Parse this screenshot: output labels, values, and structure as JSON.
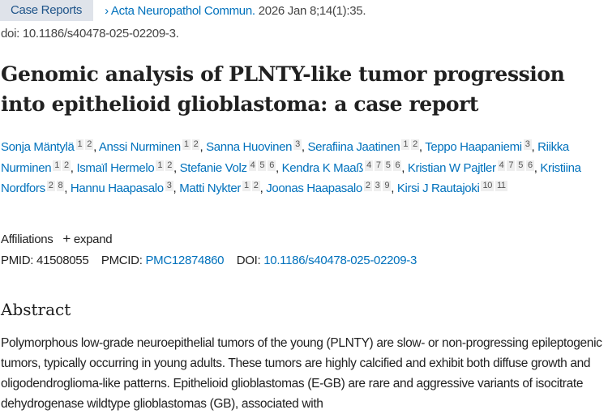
{
  "header": {
    "article_type": "Case Reports",
    "journal": "Acta Neuropathol Commun.",
    "citation": "2026 Jan 8;14(1):35.",
    "doi": "doi: 10.1186/s40478-025-02209-3."
  },
  "title": "Genomic analysis of PLNTY-like tumor progression into epithelioid glioblastoma: a case report",
  "authors": [
    {
      "name": "Sonja Mäntylä",
      "aff": [
        "1",
        "2"
      ]
    },
    {
      "name": "Anssi Nurminen",
      "aff": [
        "1",
        "2"
      ]
    },
    {
      "name": "Sanna Huovinen",
      "aff": [
        "3"
      ]
    },
    {
      "name": "Serafiina Jaatinen",
      "aff": [
        "1",
        "2"
      ]
    },
    {
      "name": "Teppo Haapaniemi",
      "aff": [
        "3"
      ]
    },
    {
      "name": "Riikka Nurminen",
      "aff": [
        "1",
        "2"
      ]
    },
    {
      "name": "Ismaïl Hermelo",
      "aff": [
        "1",
        "2"
      ]
    },
    {
      "name": "Stefanie Volz",
      "aff": [
        "4",
        "5",
        "6"
      ]
    },
    {
      "name": "Kendra K Maaß",
      "aff": [
        "4",
        "7",
        "5",
        "6"
      ]
    },
    {
      "name": "Kristian W Pajtler",
      "aff": [
        "4",
        "7",
        "5",
        "6"
      ]
    },
    {
      "name": "Kristiina Nordfors",
      "aff": [
        "2",
        "8"
      ]
    },
    {
      "name": "Hannu Haapasalo",
      "aff": [
        "3"
      ]
    },
    {
      "name": "Matti Nykter",
      "aff": [
        "1",
        "2"
      ]
    },
    {
      "name": "Joonas Haapasalo",
      "aff": [
        "2",
        "3",
        "9"
      ]
    },
    {
      "name": "Kirsi J Rautajoki",
      "aff": [
        "10",
        "11"
      ]
    }
  ],
  "affiliations": {
    "label": "Affiliations",
    "expand": "expand"
  },
  "ids": {
    "pmid_label": "PMID:",
    "pmid": "41508055",
    "pmcid_label": "PMCID:",
    "pmcid": "PMC12874860",
    "doi_label": "DOI:",
    "doi": "10.1186/s40478-025-02209-3"
  },
  "abstract": {
    "heading": "Abstract",
    "text": "Polymorphous low-grade neuroepithelial tumors of the young (PLNTY) are slow- or non-progressing epileptogenic tumors, typically occurring in young adults. These tumors are highly calcified and exhibit both diffuse growth and oligodendroglioma-like patterns. Epithelioid glioblastomas (E-GB) are rare and aggressive variants of isocitrate dehydrogenase wildtype glioblastomas (GB), associated with"
  },
  "colors": {
    "link": "#0071bc",
    "badge_bg": "#dfe3ea"
  }
}
